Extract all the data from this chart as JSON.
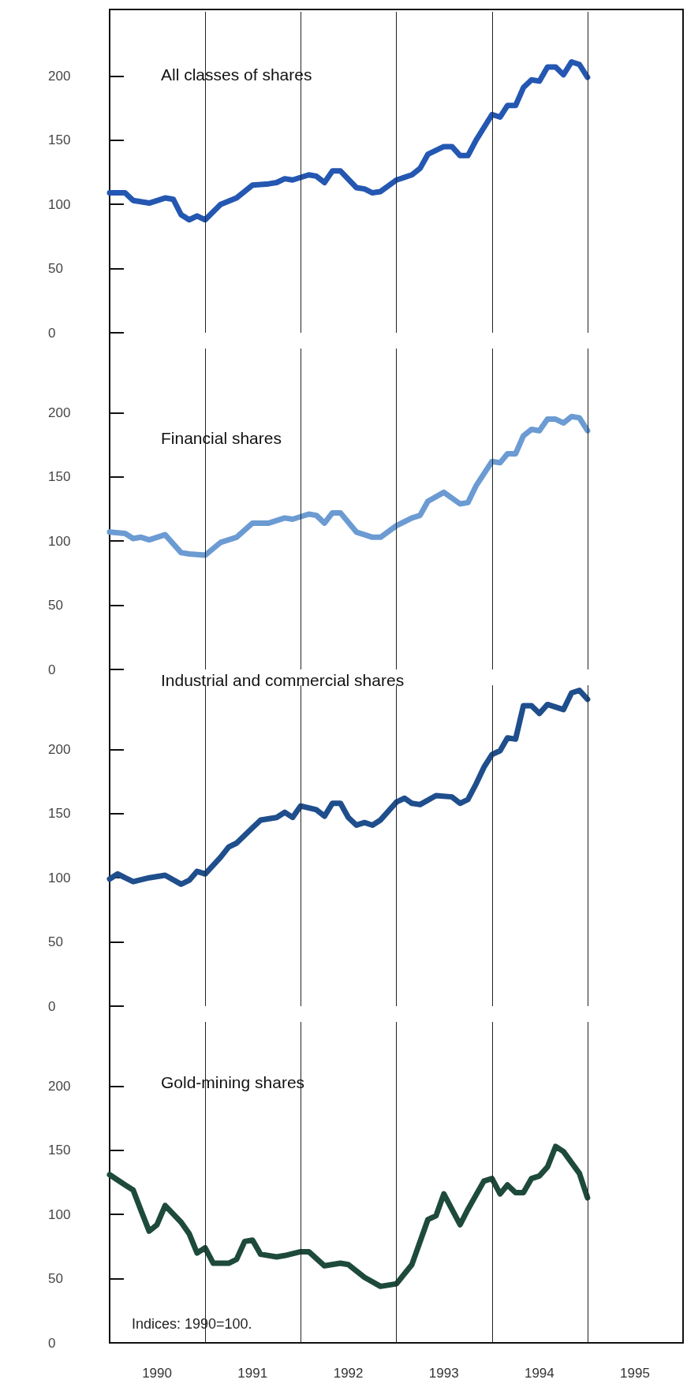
{
  "chart_data": [
    {
      "type": "line",
      "title": "All classes of shares",
      "xlim": [
        "1990-01",
        "1996-01"
      ],
      "ylim": [
        0,
        250
      ],
      "yticks": [
        0,
        50,
        100,
        150,
        200
      ],
      "tick_labels": "y",
      "grid": false,
      "marker": "none",
      "ref_lines": [
        {
          "axis": "x",
          "value": "1991-01"
        },
        {
          "axis": "x",
          "value": "1992-01"
        },
        {
          "axis": "x",
          "value": "1993-01"
        },
        {
          "axis": "x",
          "value": "1994-01"
        },
        {
          "axis": "x",
          "value": "1995-01"
        }
      ],
      "series": [
        {
          "color": "#2457b2",
          "x": [
            "1990-01",
            "1990-03",
            "1990-04",
            "1990-06",
            "1990-08",
            "1990-09",
            "1990-10",
            "1990-11",
            "1990-12",
            "1991-01",
            "1991-03",
            "1991-05",
            "1991-07",
            "1991-09",
            "1991-10",
            "1991-11",
            "1991-12",
            "1992-02",
            "1992-03",
            "1992-04",
            "1992-05",
            "1992-06",
            "1992-08",
            "1992-09",
            "1992-10",
            "1992-11",
            "1993-01",
            "1993-03",
            "1993-04",
            "1993-05",
            "1993-07",
            "1993-08",
            "1993-09",
            "1993-10",
            "1993-11",
            "1994-01",
            "1994-02",
            "1994-03",
            "1994-04",
            "1994-05",
            "1994-06",
            "1994-07",
            "1994-08",
            "1994-09",
            "1994-10",
            "1994-11",
            "1994-12",
            "1995-01"
          ],
          "values": [
            109,
            109,
            103,
            101,
            105,
            104,
            92,
            88,
            91,
            88,
            100,
            105,
            115,
            116,
            117,
            120,
            119,
            123,
            122,
            117,
            126,
            126,
            113,
            112,
            109,
            110,
            119,
            123,
            128,
            139,
            145,
            145,
            138,
            138,
            150,
            170,
            168,
            177,
            177,
            191,
            197,
            196,
            207,
            207,
            201,
            211,
            209,
            199
          ]
        }
      ]
    },
    {
      "type": "line",
      "title": "Financial shares",
      "xlim": [
        "1990-01",
        "1996-01"
      ],
      "ylim": [
        0,
        250
      ],
      "yticks": [
        0,
        50,
        100,
        150,
        200
      ],
      "tick_labels": "y",
      "grid": false,
      "marker": "none",
      "ref_lines": [
        {
          "axis": "x",
          "value": "1991-01"
        },
        {
          "axis": "x",
          "value": "1992-01"
        },
        {
          "axis": "x",
          "value": "1993-01"
        },
        {
          "axis": "x",
          "value": "1994-01"
        },
        {
          "axis": "x",
          "value": "1995-01"
        }
      ],
      "series": [
        {
          "color": "#6b9bd2",
          "x": [
            "1990-01",
            "1990-03",
            "1990-04",
            "1990-05",
            "1990-06",
            "1990-08",
            "1990-10",
            "1990-11",
            "1991-01",
            "1991-03",
            "1991-05",
            "1991-07",
            "1991-09",
            "1991-11",
            "1991-12",
            "1992-02",
            "1992-03",
            "1992-04",
            "1992-05",
            "1992-06",
            "1992-08",
            "1992-09",
            "1992-10",
            "1992-11",
            "1993-01",
            "1993-03",
            "1993-04",
            "1993-05",
            "1993-07",
            "1993-09",
            "1993-10",
            "1993-11",
            "1994-01",
            "1994-02",
            "1994-03",
            "1994-04",
            "1994-05",
            "1994-06",
            "1994-07",
            "1994-08",
            "1994-09",
            "1994-10",
            "1994-11",
            "1994-12",
            "1995-01"
          ],
          "values": [
            107,
            106,
            102,
            103,
            101,
            105,
            91,
            90,
            89,
            99,
            103,
            114,
            114,
            118,
            117,
            121,
            120,
            114,
            122,
            122,
            107,
            105,
            103,
            103,
            112,
            118,
            120,
            131,
            138,
            129,
            130,
            143,
            162,
            161,
            168,
            168,
            182,
            187,
            186,
            195,
            195,
            192,
            197,
            196,
            186
          ]
        }
      ]
    },
    {
      "type": "line",
      "title": "Industrial and commercial shares",
      "xlim": [
        "1990-01",
        "1996-01"
      ],
      "ylim": [
        0,
        250
      ],
      "yticks": [
        0,
        50,
        100,
        150,
        200
      ],
      "tick_labels": "y",
      "grid": false,
      "marker": "none",
      "ref_lines": [
        {
          "axis": "x",
          "value": "1991-01"
        },
        {
          "axis": "x",
          "value": "1992-01"
        },
        {
          "axis": "x",
          "value": "1993-01"
        },
        {
          "axis": "x",
          "value": "1994-01"
        },
        {
          "axis": "x",
          "value": "1995-01"
        }
      ],
      "series": [
        {
          "color": "#1f4e8c",
          "x": [
            "1990-01",
            "1990-02",
            "1990-03",
            "1990-04",
            "1990-06",
            "1990-08",
            "1990-10",
            "1990-11",
            "1990-12",
            "1991-01",
            "1991-03",
            "1991-04",
            "1991-05",
            "1991-07",
            "1991-08",
            "1991-10",
            "1991-11",
            "1991-12",
            "1992-01",
            "1992-03",
            "1992-04",
            "1992-05",
            "1992-06",
            "1992-07",
            "1992-08",
            "1992-09",
            "1992-10",
            "1992-11",
            "1993-01",
            "1993-02",
            "1993-03",
            "1993-04",
            "1993-06",
            "1993-08",
            "1993-09",
            "1993-10",
            "1993-11",
            "1993-12",
            "1994-01",
            "1994-02",
            "1994-03",
            "1994-04",
            "1994-05",
            "1994-06",
            "1994-07",
            "1994-08",
            "1994-10",
            "1994-11",
            "1994-12",
            "1995-01"
          ],
          "values": [
            99,
            103,
            100,
            97,
            100,
            102,
            95,
            98,
            105,
            103,
            116,
            124,
            127,
            139,
            145,
            147,
            151,
            147,
            156,
            153,
            148,
            158,
            158,
            147,
            141,
            143,
            141,
            145,
            159,
            162,
            158,
            157,
            164,
            163,
            158,
            161,
            173,
            186,
            196,
            199,
            209,
            208,
            234,
            234,
            228,
            235,
            231,
            244,
            246,
            239
          ]
        }
      ]
    },
    {
      "type": "line",
      "title": "Gold-mining shares",
      "annotations": [
        "Indices: 1990=100."
      ],
      "xlim": [
        "1990-01",
        "1996-01"
      ],
      "xticks": [
        {
          "value": "1990-07",
          "label": "1990"
        },
        {
          "value": "1991-07",
          "label": "1991"
        },
        {
          "value": "1992-07",
          "label": "1992"
        },
        {
          "value": "1993-07",
          "label": "1993"
        },
        {
          "value": "1994-07",
          "label": "1994"
        },
        {
          "value": "1995-07",
          "label": "1995"
        }
      ],
      "ylim": [
        0,
        250
      ],
      "yticks": [
        0,
        50,
        100,
        150,
        200
      ],
      "grid": false,
      "marker": "none",
      "ref_lines": [
        {
          "axis": "x",
          "value": "1991-01"
        },
        {
          "axis": "x",
          "value": "1992-01"
        },
        {
          "axis": "x",
          "value": "1993-01"
        },
        {
          "axis": "x",
          "value": "1994-01"
        },
        {
          "axis": "x",
          "value": "1995-01"
        }
      ],
      "series": [
        {
          "color": "#1e4a3b",
          "x": [
            "1990-01",
            "1990-03",
            "1990-04",
            "1990-05",
            "1990-06",
            "1990-07",
            "1990-08",
            "1990-10",
            "1990-11",
            "1990-12",
            "1991-01",
            "1991-02",
            "1991-04",
            "1991-05",
            "1991-06",
            "1991-07",
            "1991-08",
            "1991-10",
            "1991-11",
            "1992-01",
            "1992-02",
            "1992-04",
            "1992-06",
            "1992-07",
            "1992-09",
            "1992-11",
            "1993-01",
            "1993-03",
            "1993-05",
            "1993-06",
            "1993-07",
            "1993-09",
            "1993-10",
            "1993-12",
            "1994-01",
            "1994-02",
            "1994-03",
            "1994-04",
            "1994-05",
            "1994-06",
            "1994-07",
            "1994-08",
            "1994-09",
            "1994-10",
            "1994-12",
            "1995-01"
          ],
          "values": [
            131,
            123,
            119,
            103,
            87,
            92,
            107,
            94,
            85,
            70,
            74,
            62,
            62,
            65,
            79,
            80,
            69,
            67,
            68,
            71,
            71,
            60,
            62,
            61,
            51,
            44,
            46,
            61,
            96,
            99,
            116,
            92,
            104,
            126,
            128,
            116,
            123,
            117,
            117,
            128,
            130,
            137,
            153,
            149,
            132,
            113
          ]
        }
      ]
    }
  ]
}
